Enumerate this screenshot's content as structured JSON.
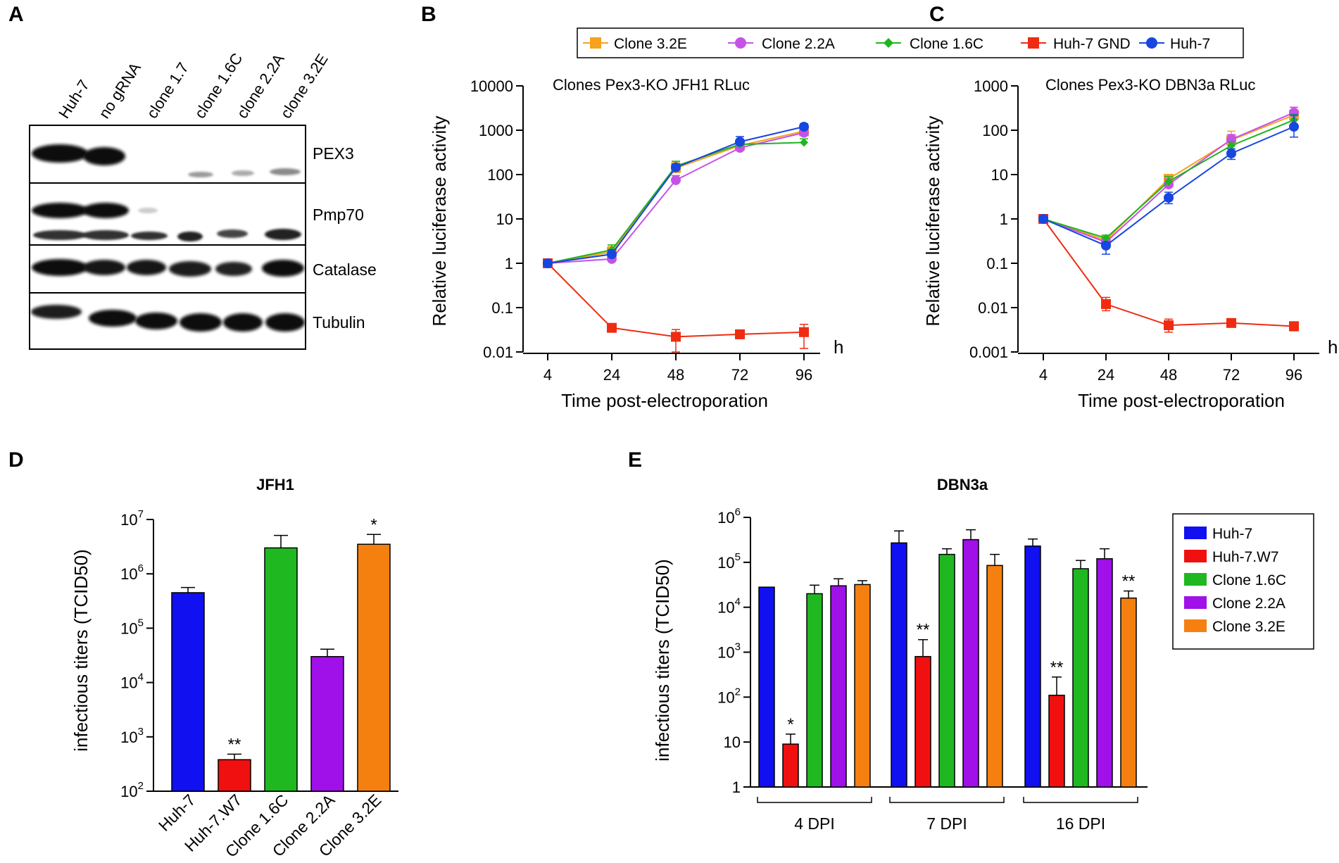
{
  "figure": {
    "panel_labels": [
      "A",
      "B",
      "C",
      "D",
      "E"
    ]
  },
  "western_blot": {
    "lanes": [
      "Huh-7",
      "no gRNA",
      "clone 1.7",
      "clone 1.6C",
      "clone 2.2A",
      "clone 3.2E"
    ],
    "proteins": [
      "PEX3",
      "Pmp70",
      "Catalase",
      "Tubulin"
    ]
  },
  "line_legend": {
    "entries": [
      {
        "name": "Clone 3.2E",
        "color": "#f6a21e",
        "marker": "square"
      },
      {
        "name": "Clone 2.2A",
        "color": "#c552e8",
        "marker": "circle"
      },
      {
        "name": "Clone 1.6C",
        "color": "#1fb51f",
        "marker": "diamond"
      },
      {
        "name": "Huh-7 GND",
        "color": "#ef2c12",
        "marker": "square"
      },
      {
        "name": "Huh-7",
        "color": "#1746e0",
        "marker": "circle"
      }
    ]
  },
  "bar_legend": {
    "entries": [
      {
        "name": "Huh-7",
        "color": "#1010f0"
      },
      {
        "name": "Huh-7.W7",
        "color": "#f01010"
      },
      {
        "name": "Clone 1.6C",
        "color": "#20b820"
      },
      {
        "name": "Clone 2.2A",
        "color": "#a010e8"
      },
      {
        "name": "Clone 3.2E",
        "color": "#f58010"
      }
    ]
  },
  "chart_data": [
    {
      "panel": "B",
      "type": "line",
      "title": "Clones Pex3-KO JFH1 RLuc",
      "xlabel": "Time post-electroporation",
      "x_unit": "h",
      "ylabel": "Relative luciferase activity",
      "yscale": "log",
      "ylim": [
        0.01,
        10000
      ],
      "x": [
        4,
        24,
        48,
        72,
        96
      ],
      "x_ticks": [
        "4",
        "24",
        "48",
        "72",
        "96"
      ],
      "y_ticks": [
        "0.01",
        "0.1",
        "1",
        "10",
        "100",
        "1000",
        "10000"
      ],
      "series": [
        {
          "name": "Clone 3.2E",
          "values": [
            1,
            1.8,
            140,
            450,
            950
          ],
          "err_hi": [
            1.1,
            2.4,
            190,
            560,
            1250
          ]
        },
        {
          "name": "Clone 2.2A",
          "values": [
            1,
            1.25,
            75,
            400,
            880
          ],
          "err_hi": [
            1.1,
            1.6,
            95,
            490,
            1100
          ]
        },
        {
          "name": "Clone 1.6C",
          "values": [
            1,
            2.0,
            155,
            480,
            530
          ],
          "err_hi": [
            1.1,
            2.6,
            200,
            580,
            640
          ]
        },
        {
          "name": "Huh-7 GND",
          "values": [
            1,
            0.035,
            0.022,
            0.025,
            0.028
          ],
          "err_hi": [
            1.1,
            0.038,
            0.032,
            0.028,
            0.042
          ],
          "err_lo": [
            0.9,
            0.032,
            0.01,
            0.022,
            0.012
          ]
        },
        {
          "name": "Huh-7",
          "values": [
            1,
            1.6,
            145,
            550,
            1200
          ],
          "err_hi": [
            1.1,
            2.0,
            175,
            720,
            1400
          ]
        }
      ]
    },
    {
      "panel": "C",
      "type": "line",
      "title": "Clones Pex3-KO DBN3a RLuc",
      "xlabel": "Time post-electroporation",
      "x_unit": "h",
      "ylabel": "Relative luciferase activity",
      "yscale": "log",
      "ylim": [
        0.001,
        1000
      ],
      "x": [
        4,
        24,
        48,
        72,
        96
      ],
      "x_ticks": [
        "4",
        "24",
        "48",
        "72",
        "96"
      ],
      "y_ticks": [
        "0.001",
        "0.01",
        "0.1",
        "1",
        "10",
        "100",
        "1000"
      ],
      "series": [
        {
          "name": "Clone 3.2E",
          "values": [
            1,
            0.33,
            8,
            60,
            220
          ],
          "err_hi": [
            1.1,
            0.4,
            10,
            95,
            330
          ]
        },
        {
          "name": "Clone 2.2A",
          "values": [
            1,
            0.3,
            6,
            62,
            250
          ],
          "err_hi": [
            1.1,
            0.36,
            8,
            80,
            330
          ]
        },
        {
          "name": "Clone 1.6C",
          "values": [
            1,
            0.37,
            7,
            45,
            170
          ],
          "err_hi": [
            1.1,
            0.43,
            9,
            55,
            230
          ]
        },
        {
          "name": "Huh-7 GND",
          "values": [
            1,
            0.012,
            0.004,
            0.0045,
            0.0038
          ],
          "err_hi": [
            1.1,
            0.017,
            0.0055,
            0.0055,
            0.0048
          ],
          "err_lo": [
            0.9,
            0.0085,
            0.0028,
            0.0038,
            0.003
          ]
        },
        {
          "name": "Huh-7",
          "values": [
            1,
            0.25,
            3,
            30,
            120
          ],
          "err_hi": [
            1.1,
            0.3,
            4,
            38,
            220
          ],
          "err_lo": [
            0.9,
            0.16,
            2.2,
            22,
            70
          ]
        }
      ]
    },
    {
      "panel": "D",
      "type": "bar",
      "title": "JFH1",
      "ylabel": "infectious titers (TCID50)",
      "yscale": "log",
      "ylim": [
        100,
        10000000
      ],
      "y_ticks": [
        {
          "base": "10",
          "exp": "2"
        },
        {
          "base": "10",
          "exp": "3"
        },
        {
          "base": "10",
          "exp": "4"
        },
        {
          "base": "10",
          "exp": "5"
        },
        {
          "base": "10",
          "exp": "6"
        },
        {
          "base": "10",
          "exp": "7"
        }
      ],
      "categories": [
        "Huh-7",
        "Huh-7.W7",
        "Clone 1.6C",
        "Clone 2.2A",
        "Clone 3.2E"
      ],
      "values": [
        450000,
        380,
        3000000,
        30000,
        3500000
      ],
      "err_hi": [
        560000,
        480,
        5100000,
        41000,
        5300000
      ],
      "significance": [
        "",
        "**",
        "",
        "",
        "*"
      ]
    },
    {
      "panel": "E",
      "type": "bar",
      "title": "DBN3a",
      "ylabel": "infectious titers (TCID50)",
      "yscale": "log",
      "ylim": [
        1,
        1000000
      ],
      "y_ticks": [
        {
          "base": "1",
          "exp": ""
        },
        {
          "base": "10",
          "exp": ""
        },
        {
          "base": "10",
          "exp": "2"
        },
        {
          "base": "10",
          "exp": "3"
        },
        {
          "base": "10",
          "exp": "4"
        },
        {
          "base": "10",
          "exp": "5"
        },
        {
          "base": "10",
          "exp": "6"
        }
      ],
      "groups": [
        "4 DPI",
        "7 DPI",
        "16 DPI"
      ],
      "series": [
        {
          "name": "Huh-7",
          "values": [
            28000,
            270000,
            230000
          ],
          "err_hi": [
            28000,
            500000,
            330000
          ],
          "significance": [
            "",
            "",
            ""
          ]
        },
        {
          "name": "Huh-7.W7",
          "values": [
            9,
            800,
            110
          ],
          "err_hi": [
            15,
            1900,
            280
          ],
          "significance": [
            "*",
            "**",
            "**"
          ]
        },
        {
          "name": "Clone 1.6C",
          "values": [
            20000,
            150000,
            72000
          ],
          "err_hi": [
            31000,
            200000,
            110000
          ],
          "significance": [
            "",
            "",
            ""
          ]
        },
        {
          "name": "Clone 2.2A",
          "values": [
            30000,
            320000,
            120000
          ],
          "err_hi": [
            43000,
            530000,
            200000
          ],
          "significance": [
            "",
            "",
            ""
          ]
        },
        {
          "name": "Clone 3.2E",
          "values": [
            32000,
            85000,
            16000
          ],
          "err_hi": [
            39000,
            150000,
            23000
          ],
          "significance": [
            "",
            "",
            "**"
          ]
        }
      ]
    }
  ]
}
